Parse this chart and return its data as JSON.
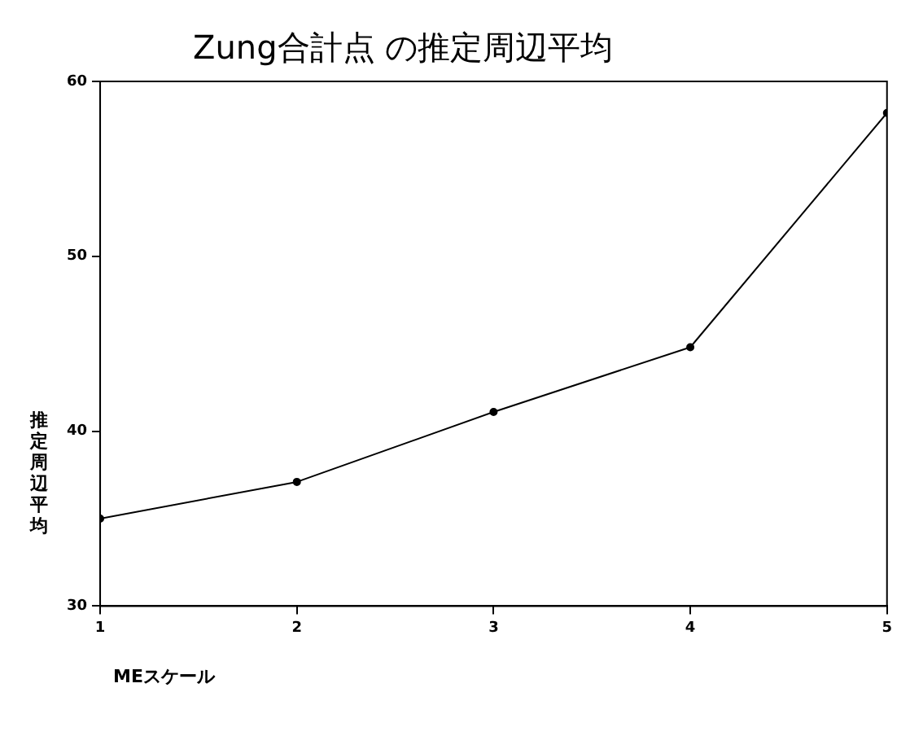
{
  "chart_data": {
    "type": "line",
    "title": "Zung合計点 の推定周辺平均",
    "xlabel": "MEスケール",
    "ylabel": "推定周辺平均",
    "x": [
      1,
      2,
      3,
      4,
      5
    ],
    "series": [
      {
        "color": "#000000",
        "values": [
          35,
          37.1,
          41.1,
          44.8,
          58.2
        ]
      }
    ],
    "xlim": [
      1,
      5
    ],
    "xticks": [
      1,
      2,
      3,
      4,
      5
    ],
    "ylim": [
      30,
      60
    ],
    "yticks": [
      30,
      40,
      50,
      60
    ],
    "grid": false,
    "legend": false,
    "marker": "circle",
    "line_style": "solid"
  }
}
